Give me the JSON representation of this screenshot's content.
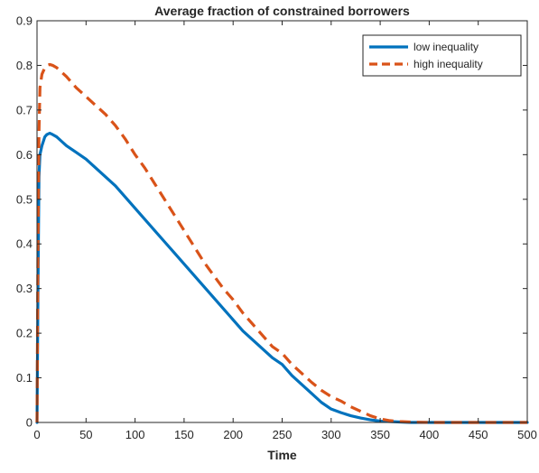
{
  "chart_data": {
    "type": "line",
    "title": "Average fraction of constrained borrowers",
    "xlabel": "Time",
    "ylabel": "",
    "xlim": [
      0,
      500
    ],
    "ylim": [
      0,
      0.9
    ],
    "xticks": [
      0,
      50,
      100,
      150,
      200,
      250,
      300,
      350,
      400,
      450,
      500
    ],
    "yticks": [
      0,
      0.1,
      0.2,
      0.3,
      0.4,
      0.5,
      0.6,
      0.7,
      0.8,
      0.9
    ],
    "xtick_labels": [
      "0",
      "50",
      "100",
      "150",
      "200",
      "250",
      "300",
      "350",
      "400",
      "450",
      "500"
    ],
    "ytick_labels": [
      "0",
      "0.1",
      "0.2",
      "0.3",
      "0.4",
      "0.5",
      "0.6",
      "0.7",
      "0.8",
      "0.9"
    ],
    "grid": false,
    "legend_position": "top-right",
    "series": [
      {
        "name": "low inequality",
        "color": "#0072BD",
        "style": "solid",
        "x": [
          0,
          1,
          2,
          3,
          5,
          8,
          10,
          13,
          16,
          20,
          25,
          30,
          40,
          50,
          60,
          70,
          80,
          90,
          100,
          110,
          120,
          130,
          140,
          150,
          160,
          170,
          180,
          190,
          200,
          210,
          220,
          230,
          240,
          250,
          260,
          270,
          280,
          290,
          300,
          310,
          320,
          330,
          340,
          350,
          360,
          370,
          380,
          400,
          450,
          500
        ],
        "y": [
          0,
          0.3,
          0.55,
          0.6,
          0.62,
          0.64,
          0.645,
          0.648,
          0.645,
          0.64,
          0.63,
          0.62,
          0.605,
          0.59,
          0.57,
          0.55,
          0.53,
          0.505,
          0.48,
          0.455,
          0.43,
          0.405,
          0.38,
          0.355,
          0.33,
          0.305,
          0.28,
          0.255,
          0.23,
          0.205,
          0.185,
          0.165,
          0.145,
          0.13,
          0.105,
          0.085,
          0.065,
          0.045,
          0.03,
          0.022,
          0.015,
          0.01,
          0.006,
          0.003,
          0.002,
          0.001,
          0,
          0,
          0,
          0
        ]
      },
      {
        "name": "high inequality",
        "color": "#D95319",
        "style": "dashed",
        "x": [
          0,
          1,
          2,
          3,
          5,
          8,
          10,
          13,
          16,
          20,
          25,
          30,
          40,
          50,
          60,
          70,
          80,
          90,
          100,
          110,
          120,
          130,
          140,
          150,
          160,
          170,
          180,
          190,
          200,
          210,
          220,
          230,
          240,
          250,
          260,
          270,
          280,
          290,
          300,
          310,
          320,
          330,
          340,
          350,
          360,
          370,
          380,
          400,
          450,
          500
        ],
        "y": [
          0,
          0.4,
          0.65,
          0.75,
          0.78,
          0.795,
          0.8,
          0.802,
          0.8,
          0.795,
          0.785,
          0.775,
          0.75,
          0.73,
          0.71,
          0.69,
          0.665,
          0.635,
          0.6,
          0.57,
          0.535,
          0.5,
          0.465,
          0.43,
          0.395,
          0.36,
          0.33,
          0.3,
          0.275,
          0.245,
          0.22,
          0.195,
          0.17,
          0.155,
          0.13,
          0.11,
          0.09,
          0.072,
          0.058,
          0.048,
          0.035,
          0.025,
          0.015,
          0.008,
          0.004,
          0.002,
          0.001,
          0,
          0,
          0
        ]
      }
    ]
  }
}
